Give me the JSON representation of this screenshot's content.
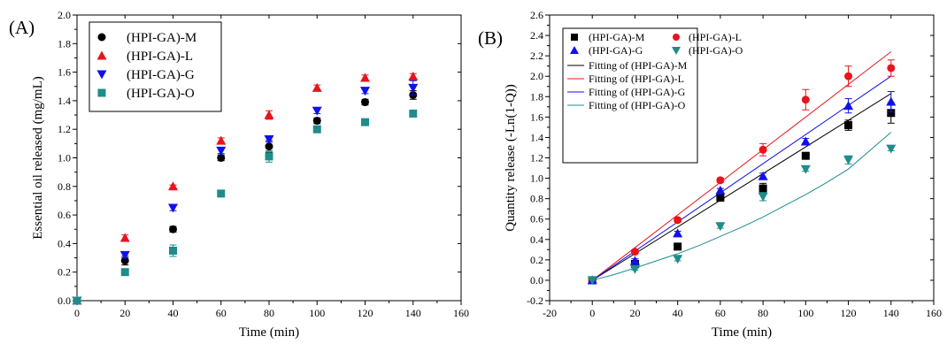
{
  "colors": {
    "M": "#000000",
    "L": "#e8141b",
    "G": "#1010ee",
    "O": "#1f8c8c",
    "axis": "#000000"
  },
  "chart_data": [
    {
      "panel_label": "(A)",
      "type": "scatter",
      "xlabel": "Time (min)",
      "ylabel": "Essential oil released (mg/mL)",
      "xlim": [
        0,
        160
      ],
      "ylim": [
        0,
        2.0
      ],
      "xticks": [
        0,
        20,
        40,
        60,
        80,
        100,
        120,
        140,
        160
      ],
      "yticks": [
        0.0,
        0.2,
        0.4,
        0.6,
        0.8,
        1.0,
        1.2,
        1.4,
        1.6,
        1.8,
        2.0
      ],
      "xtick_labels": [
        "0",
        "20",
        "40",
        "60",
        "80",
        "100",
        "120",
        "140",
        "160"
      ],
      "ytick_labels": [
        "0.0",
        "0.2",
        "0.4",
        "0.6",
        "0.8",
        "1.0",
        "1.2",
        "1.4",
        "1.6",
        "1.8",
        "2.0"
      ],
      "grid": false,
      "legend_position": "top-left",
      "x": [
        0,
        20,
        40,
        60,
        80,
        100,
        120,
        140
      ],
      "series": [
        {
          "name": "(HPI-GA)-M",
          "key": "M",
          "marker": "circle",
          "values": [
            0,
            0.28,
            0.5,
            1.0,
            1.08,
            1.26,
            1.39,
            1.44
          ],
          "errors": [
            0,
            0.03,
            0.02,
            0.02,
            0.04,
            0.02,
            0.02,
            0.03
          ]
        },
        {
          "name": "(HPI-GA)-L",
          "key": "L",
          "marker": "triangle-up",
          "values": [
            0,
            0.44,
            0.8,
            1.12,
            1.3,
            1.49,
            1.56,
            1.57
          ],
          "errors": [
            0,
            0.02,
            0.01,
            0.02,
            0.03,
            0.02,
            0.02,
            0.02
          ]
        },
        {
          "name": "(HPI-GA)-G",
          "key": "G",
          "marker": "triangle-down",
          "values": [
            0,
            0.32,
            0.65,
            1.05,
            1.13,
            1.33,
            1.47,
            1.49
          ],
          "errors": [
            0,
            0.02,
            0.02,
            0.02,
            0.02,
            0.02,
            0.02,
            0.05
          ]
        },
        {
          "name": "(HPI-GA)-O",
          "key": "O",
          "marker": "square",
          "values": [
            0,
            0.2,
            0.35,
            0.75,
            1.01,
            1.2,
            1.25,
            1.31
          ],
          "errors": [
            0,
            0.01,
            0.04,
            0.02,
            0.04,
            0.01,
            0.02,
            0.02
          ]
        }
      ]
    },
    {
      "panel_label": "(B)",
      "type": "scatter",
      "xlabel": "Time (min)",
      "ylabel": "Quantity release (-Ln(1-Q))",
      "xlim": [
        -20,
        160
      ],
      "ylim": [
        -0.2,
        2.6
      ],
      "xticks": [
        -20,
        0,
        20,
        40,
        60,
        80,
        100,
        120,
        140,
        160
      ],
      "yticks": [
        -0.2,
        0.0,
        0.2,
        0.4,
        0.6,
        0.8,
        1.0,
        1.2,
        1.4,
        1.6,
        1.8,
        2.0,
        2.2,
        2.4,
        2.6
      ],
      "xtick_labels": [
        "-20",
        "0",
        "20",
        "40",
        "60",
        "80",
        "100",
        "120",
        "140",
        "160"
      ],
      "ytick_labels": [
        "-0.2",
        "0.0",
        "0.2",
        "0.4",
        "0.6",
        "0.8",
        "1.0",
        "1.2",
        "1.4",
        "1.6",
        "1.8",
        "2.0",
        "2.2",
        "2.4",
        "2.6"
      ],
      "grid": false,
      "legend_position": "top-left",
      "x": [
        0,
        20,
        40,
        60,
        80,
        100,
        120,
        140
      ],
      "series": [
        {
          "name": "(HPI-GA)-M",
          "key": "M",
          "marker": "square",
          "values": [
            0,
            0.16,
            0.33,
            0.81,
            0.9,
            1.22,
            1.52,
            1.64
          ],
          "errors": [
            0,
            0.02,
            0.02,
            0.02,
            0.05,
            0.02,
            0.05,
            0.1
          ]
        },
        {
          "name": "(HPI-GA)-L",
          "key": "L",
          "marker": "circle",
          "values": [
            0,
            0.28,
            0.59,
            0.98,
            1.28,
            1.77,
            2.0,
            2.08
          ],
          "errors": [
            0,
            0.02,
            0.02,
            0.02,
            0.06,
            0.1,
            0.1,
            0.08
          ]
        },
        {
          "name": "(HPI-GA)-G",
          "key": "G",
          "marker": "triangle-up",
          "values": [
            0,
            0.19,
            0.46,
            0.88,
            1.02,
            1.36,
            1.71,
            1.75
          ],
          "errors": [
            0,
            0.02,
            0.02,
            0.02,
            0.03,
            0.03,
            0.07,
            0.1
          ]
        },
        {
          "name": "(HPI-GA)-O",
          "key": "O",
          "marker": "triangle-down",
          "values": [
            0,
            0.11,
            0.21,
            0.53,
            0.82,
            1.09,
            1.18,
            1.29
          ],
          "errors": [
            0,
            0.01,
            0.02,
            0.02,
            0.04,
            0.02,
            0.04,
            0.02
          ]
        }
      ],
      "fits": [
        {
          "name": "Fitting of (HPI-GA)-M",
          "key": "M",
          "x": [
            0,
            140
          ],
          "y": [
            0,
            1.83
          ]
        },
        {
          "name": "Fitting of (HPI-GA)-L",
          "key": "L",
          "x": [
            0,
            140
          ],
          "y": [
            0,
            2.24
          ]
        },
        {
          "name": "Fitting of (HPI-GA)-G",
          "key": "G",
          "x": [
            0,
            140
          ],
          "y": [
            0,
            2.0
          ]
        },
        {
          "name": "Fitting of (HPI-GA)-O",
          "key": "O",
          "x": [
            0,
            10,
            20,
            30,
            40,
            50,
            60,
            70,
            80,
            90,
            100,
            110,
            120,
            130,
            140
          ],
          "y": [
            0,
            0.055,
            0.12,
            0.19,
            0.26,
            0.34,
            0.43,
            0.52,
            0.62,
            0.73,
            0.84,
            0.96,
            1.09,
            1.27,
            1.45
          ]
        }
      ]
    }
  ]
}
